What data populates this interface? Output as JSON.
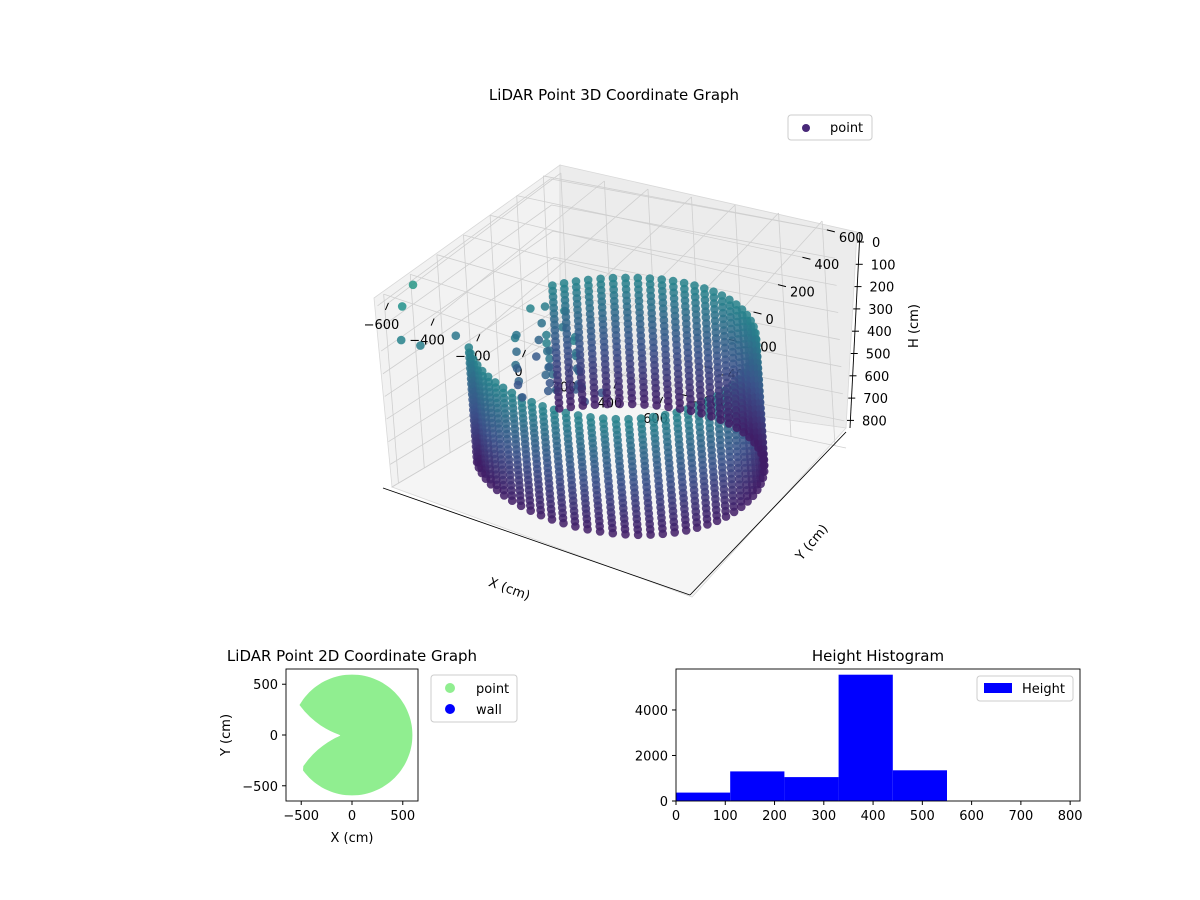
{
  "chart_data": [
    {
      "type": "scatter",
      "projection": "3d",
      "title": "LiDAR Point 3D Coordinate Graph",
      "xlabel": "X (cm)",
      "ylabel": "Y (cm)",
      "zlabel": "H (cm)",
      "xlim": [
        -650,
        650
      ],
      "ylim": [
        -650,
        650
      ],
      "zlim": [
        0,
        830
      ],
      "z_inverted": true,
      "xticks": [
        "−600",
        "−400",
        "−200",
        "0",
        "200",
        "400",
        "600"
      ],
      "yticks": [
        "−600",
        "−400",
        "−200",
        "0",
        "200",
        "400",
        "600"
      ],
      "zticks": [
        "0",
        "100",
        "200",
        "300",
        "400",
        "500",
        "600",
        "700",
        "800"
      ],
      "grid": true,
      "legend": {
        "placement": "top-right",
        "entries": [
          "point"
        ]
      },
      "colormap": [
        "#440154",
        "#3b528b",
        "#21918c",
        "#5ec962"
      ],
      "series": [
        {
          "name": "point",
          "color": "#482878",
          "shape": "cylinder wall of points, open toward -X",
          "radius": 560,
          "h_range": [
            0,
            800
          ]
        }
      ]
    },
    {
      "type": "scatter",
      "title": "LiDAR Point 2D Coordinate Graph",
      "xlabel": "X (cm)",
      "ylabel": "Y (cm)",
      "xlim": [
        -650,
        650
      ],
      "ylim": [
        -650,
        650
      ],
      "xticks": [
        "−500",
        "0",
        "500"
      ],
      "yticks": [
        "500",
        "0",
        "−500"
      ],
      "legend": {
        "placement": "right",
        "entries": [
          "point",
          "wall"
        ]
      },
      "series": [
        {
          "name": "point",
          "color": "#90ee90"
        },
        {
          "name": "wall",
          "color": "#0000ff"
        }
      ]
    },
    {
      "type": "bar",
      "title": "Height Histogram",
      "xlim": [
        0,
        820
      ],
      "ylim": [
        0,
        5800
      ],
      "xticks": [
        "0",
        "100",
        "200",
        "300",
        "400",
        "500",
        "600",
        "700",
        "800"
      ],
      "yticks": [
        "0",
        "2000",
        "4000"
      ],
      "legend": {
        "placement": "top-right",
        "entries": [
          "Height"
        ]
      },
      "series": [
        {
          "name": "Height",
          "color": "#0000ff",
          "bins": [
            {
              "x0": 0,
              "x1": 110,
              "value": 370
            },
            {
              "x0": 110,
              "x1": 220,
              "value": 1300
            },
            {
              "x0": 220,
              "x1": 330,
              "value": 1050
            },
            {
              "x0": 330,
              "x1": 440,
              "value": 5550
            },
            {
              "x0": 440,
              "x1": 550,
              "value": 1350
            },
            {
              "x0": 550,
              "x1": 660,
              "value": 0
            },
            {
              "x0": 660,
              "x1": 770,
              "value": 0
            }
          ]
        }
      ]
    }
  ]
}
